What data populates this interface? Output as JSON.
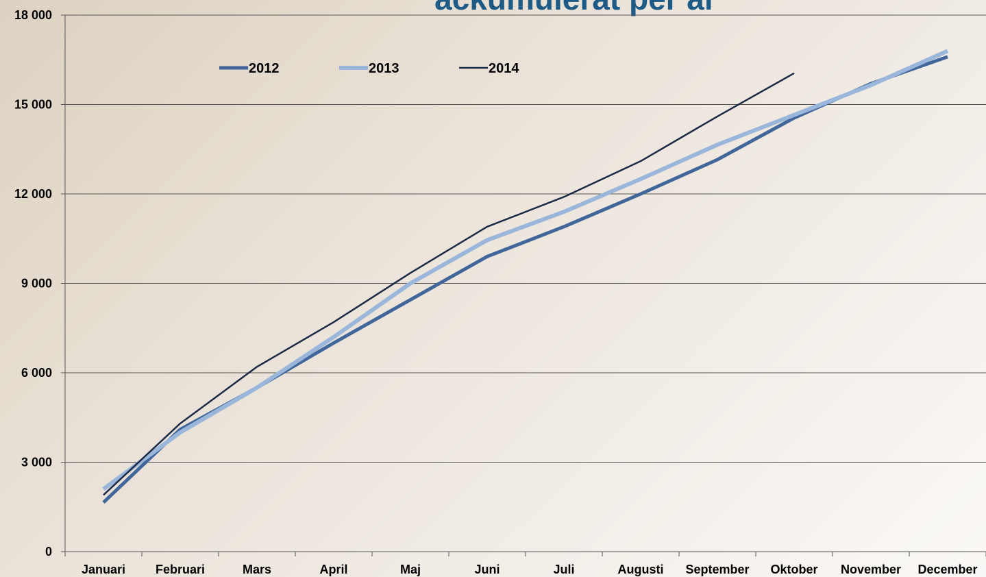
{
  "chart_data": {
    "type": "line",
    "title": "ackumulerat per år",
    "categories": [
      "Januari",
      "Februari",
      "Mars",
      "April",
      "Maj",
      "Juni",
      "Juli",
      "Augusti",
      "September",
      "Oktober",
      "November",
      "December"
    ],
    "series": [
      {
        "name": "2012",
        "color": "#41679a",
        "line_width": 5,
        "values": [
          1650,
          4100,
          5500,
          7000,
          8450,
          9900,
          10900,
          12000,
          13150,
          14550,
          15700,
          16600
        ]
      },
      {
        "name": "2013",
        "color": "#9bb6db",
        "line_width": 6,
        "values": [
          2100,
          4000,
          5500,
          7200,
          9000,
          10450,
          11400,
          12500,
          13650,
          14650,
          15650,
          16800
        ]
      },
      {
        "name": "2014",
        "color": "#1b2a45",
        "line_width": 2.5,
        "values": [
          1900,
          4300,
          6200,
          7700,
          9350,
          10900,
          11900,
          13100,
          14600,
          16050,
          null,
          null
        ]
      }
    ],
    "ylim": [
      0,
      18000
    ],
    "yticks": [
      0,
      {
        "value": 3000,
        "label": "3 000"
      },
      {
        "value": 6000,
        "label": "6 000"
      },
      {
        "value": 9000,
        "label": "9 000"
      },
      {
        "value": 12000,
        "label": "12 000"
      },
      {
        "value": 15000,
        "label": "15 000"
      },
      {
        "value": 18000,
        "label": "18 000"
      }
    ],
    "grid": true,
    "legend": "top-left"
  }
}
